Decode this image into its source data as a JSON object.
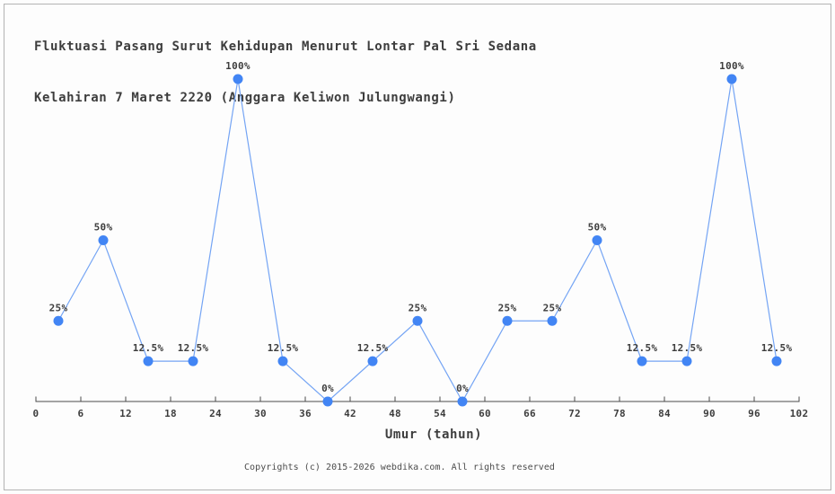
{
  "window": {
    "background": "#fdfdfd",
    "border_color": "#b3b3b3"
  },
  "header": {
    "title_line1": "Fluktuasi Pasang Surut Kehidupan Menurut Lontar Pal Sri Sedana",
    "title_line2": "Kelahiran 7 Maret 2220 (Anggara Keliwon Julungwangi)"
  },
  "footer": {
    "copyright": "Copyrights (c) 2015-2026 webdika.com. All rights reserved"
  },
  "chart_data": {
    "type": "line",
    "title": "Fluktuasi Pasang Surut Kehidupan Menurut Lontar Pal Sri Sedana Kelahiran 7 Maret 2220 (Anggara Keliwon Julungwangi)",
    "xlabel": "Umur (tahun)",
    "ylabel": "",
    "x": [
      3,
      9,
      15,
      21,
      27,
      33,
      39,
      45,
      51,
      57,
      63,
      69,
      75,
      81,
      87,
      93,
      99
    ],
    "values": [
      25,
      50,
      12.5,
      12.5,
      100,
      12.5,
      0,
      12.5,
      25,
      0,
      25,
      25,
      50,
      12.5,
      12.5,
      100,
      12.5
    ],
    "point_labels": [
      "25%",
      "50%",
      "12.5%",
      "12.5%",
      "100%",
      "12.5%",
      "0%",
      "12.5%",
      "25%",
      "0%",
      "25%",
      "25%",
      "50%",
      "12.5%",
      "12.5%",
      "100%",
      "12.5%"
    ],
    "x_ticks": [
      0,
      6,
      12,
      18,
      24,
      30,
      36,
      42,
      48,
      54,
      60,
      66,
      72,
      78,
      84,
      90,
      96,
      102
    ],
    "xlim": [
      0,
      102
    ],
    "ylim": [
      0,
      100
    ],
    "grid": false,
    "legend": null,
    "marker_color": "#4285f4",
    "line_color": "#74a4f4",
    "text_color": "#3d3d3d",
    "axis_color": "#4a4a4a"
  }
}
